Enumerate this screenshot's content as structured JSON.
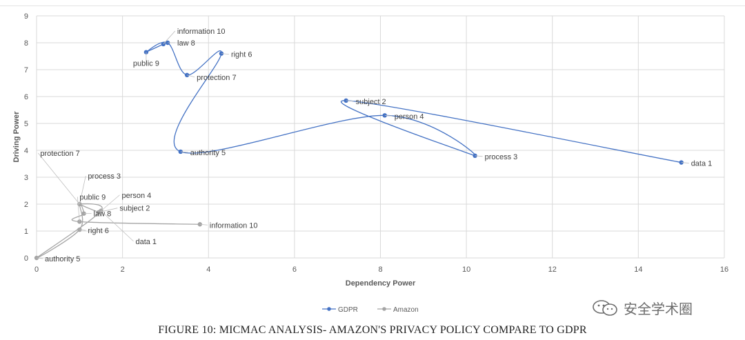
{
  "chart_data": {
    "type": "line",
    "title": "",
    "xlabel": "Dependency Power",
    "ylabel": "Driving Power",
    "xlim": [
      0,
      16
    ],
    "ylim": [
      0,
      9
    ],
    "x_ticks": [
      0,
      2,
      4,
      6,
      8,
      10,
      12,
      14,
      16
    ],
    "y_ticks": [
      0,
      1,
      2,
      3,
      4,
      5,
      6,
      7,
      8,
      9
    ],
    "grid": true,
    "legend_position": "bottom",
    "series": [
      {
        "name": "GDPR",
        "color": "#4472c4",
        "points": [
          {
            "label": "data 1",
            "x": 15.0,
            "y": 3.55
          },
          {
            "label": "subject 2",
            "x": 7.2,
            "y": 5.85
          },
          {
            "label": "process 3",
            "x": 10.2,
            "y": 3.8
          },
          {
            "label": "person 4",
            "x": 8.1,
            "y": 5.3
          },
          {
            "label": "authority 5",
            "x": 3.35,
            "y": 3.95
          },
          {
            "label": "right 6",
            "x": 4.3,
            "y": 7.6
          },
          {
            "label": "protection 7",
            "x": 3.5,
            "y": 6.8
          },
          {
            "label": "law 8",
            "x": 3.05,
            "y": 8.0
          },
          {
            "label": "public 9",
            "x": 2.55,
            "y": 7.65
          },
          {
            "label": "information 10",
            "x": 2.95,
            "y": 7.95
          }
        ]
      },
      {
        "name": "Amazon",
        "color": "#a5a5a5",
        "points": [
          {
            "label": "data 1",
            "x": 1.5,
            "y": 1.75
          },
          {
            "label": "subject 2",
            "x": 1.45,
            "y": 1.7
          },
          {
            "label": "process 3",
            "x": 1.0,
            "y": 2.0
          },
          {
            "label": "person 4",
            "x": 1.5,
            "y": 1.75
          },
          {
            "label": "authority 5",
            "x": 0.0,
            "y": 0.0
          },
          {
            "label": "right 6",
            "x": 1.0,
            "y": 1.05
          },
          {
            "label": "protection 7",
            "x": 1.0,
            "y": 2.0
          },
          {
            "label": "law 8",
            "x": 1.1,
            "y": 1.65
          },
          {
            "label": "public 9",
            "x": 1.0,
            "y": 1.35
          },
          {
            "label": "information 10",
            "x": 3.8,
            "y": 1.25
          }
        ]
      }
    ]
  },
  "caption": "FIGURE 10: MICMAC ANALYSIS- AMAZON'S PRIVACY POLICY COMPARE TO GDPR",
  "watermark": "安全学术圈"
}
